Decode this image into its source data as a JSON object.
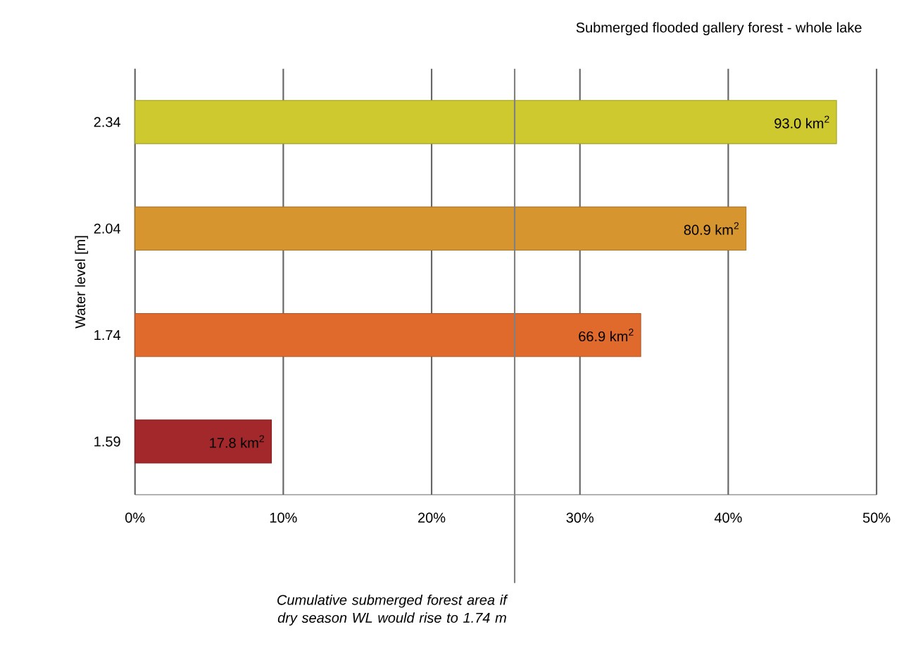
{
  "chart_data": {
    "type": "bar",
    "orientation": "horizontal",
    "title": "Submerged flooded gallery forest - whole lake",
    "ylabel": "Water level [m]",
    "categories": [
      "2.34",
      "2.04",
      "1.74",
      "1.59"
    ],
    "values": [
      47.3,
      41.2,
      34.1,
      9.2
    ],
    "colors": [
      "#cdc92e",
      "#d6952e",
      "#e06a2c",
      "#a3282b"
    ],
    "annotations": [
      {
        "text": "93.0 km$^{2}$",
        "x": 47.3,
        "y": "2.34"
      },
      {
        "text": "80.9 km$^{2}$",
        "x": 41.2,
        "y": "2.04"
      },
      {
        "text": "66.9 km$^{2}$",
        "x": 34.1,
        "y": "1.74"
      },
      {
        "text": "17.8 km$^{2}$",
        "x": 9.2,
        "y": "1.59"
      }
    ],
    "xlim": [
      0,
      50
    ],
    "xticks": [
      {
        "value": 0,
        "label": "0%"
      },
      {
        "value": 10,
        "label": "10%"
      },
      {
        "value": 20,
        "label": "20%"
      },
      {
        "value": 30,
        "label": "30%"
      },
      {
        "value": 40,
        "label": "40%"
      },
      {
        "value": 50,
        "label": "50%"
      }
    ],
    "ref_lines": [
      {
        "axis": "x",
        "value": 25.6,
        "label": "Cumulative submerged forest area if dry season WL would rise to 1.74 m",
        "color": "#808080"
      }
    ],
    "grid": "x"
  }
}
